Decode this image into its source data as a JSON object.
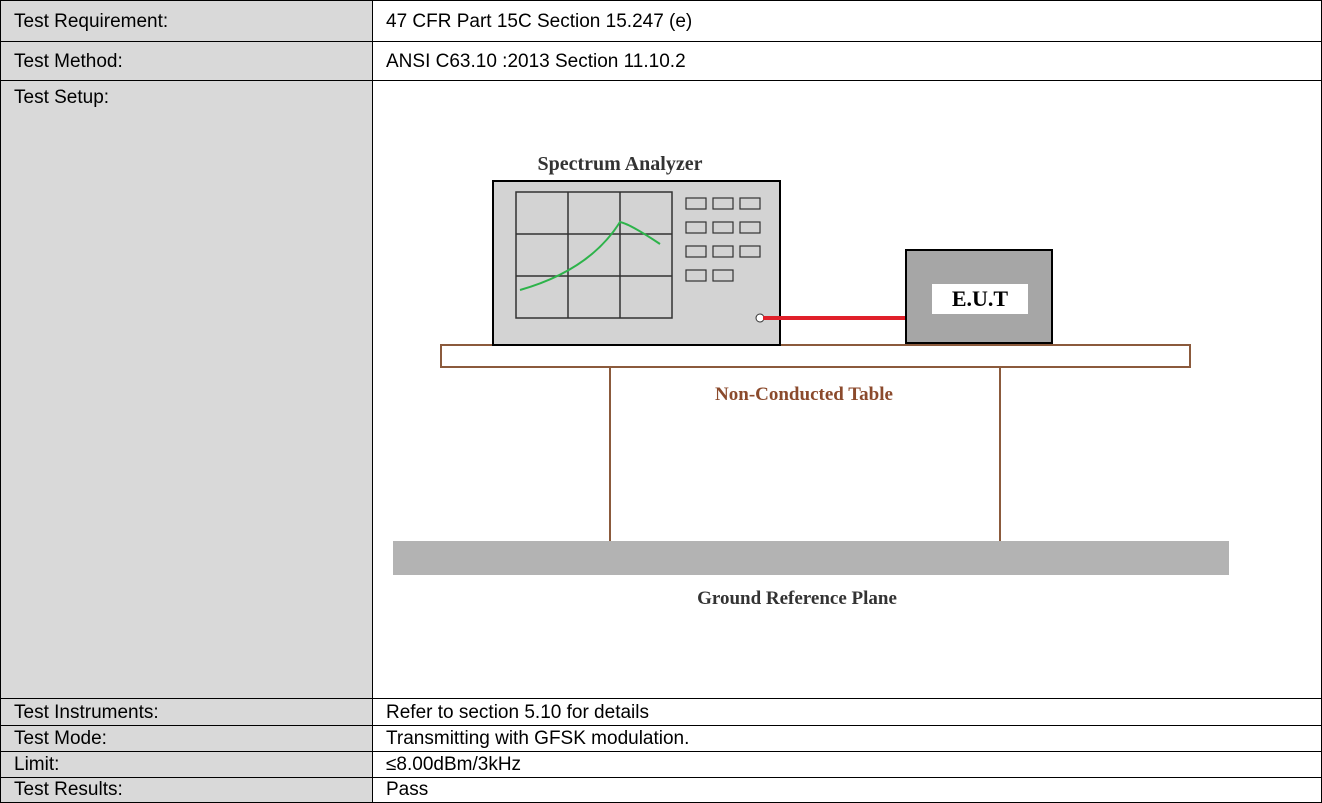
{
  "table": {
    "rows": [
      [
        "Test Requirement:",
        "47 CFR Part 15C Section 15.247 (e)"
      ],
      [
        "Test Method:",
        "ANSI C63.10 :2013 Section 11.10.2"
      ],
      [
        "Test Setup:",
        null
      ],
      [
        "Test Instruments:",
        "Refer to section 5.10 for details"
      ],
      [
        "Test Mode:",
        "Transmitting with GFSK modulation."
      ],
      [
        "Limit:",
        "≤8.00dBm/3kHz"
      ],
      [
        "Test Results:",
        "Pass"
      ]
    ]
  },
  "diagram": {
    "analyzer_label": "Spectrum Analyzer",
    "eut_label": "E.U.T",
    "table_label": "Non-Conducted Table",
    "ground_label": "Ground Reference Plane"
  }
}
